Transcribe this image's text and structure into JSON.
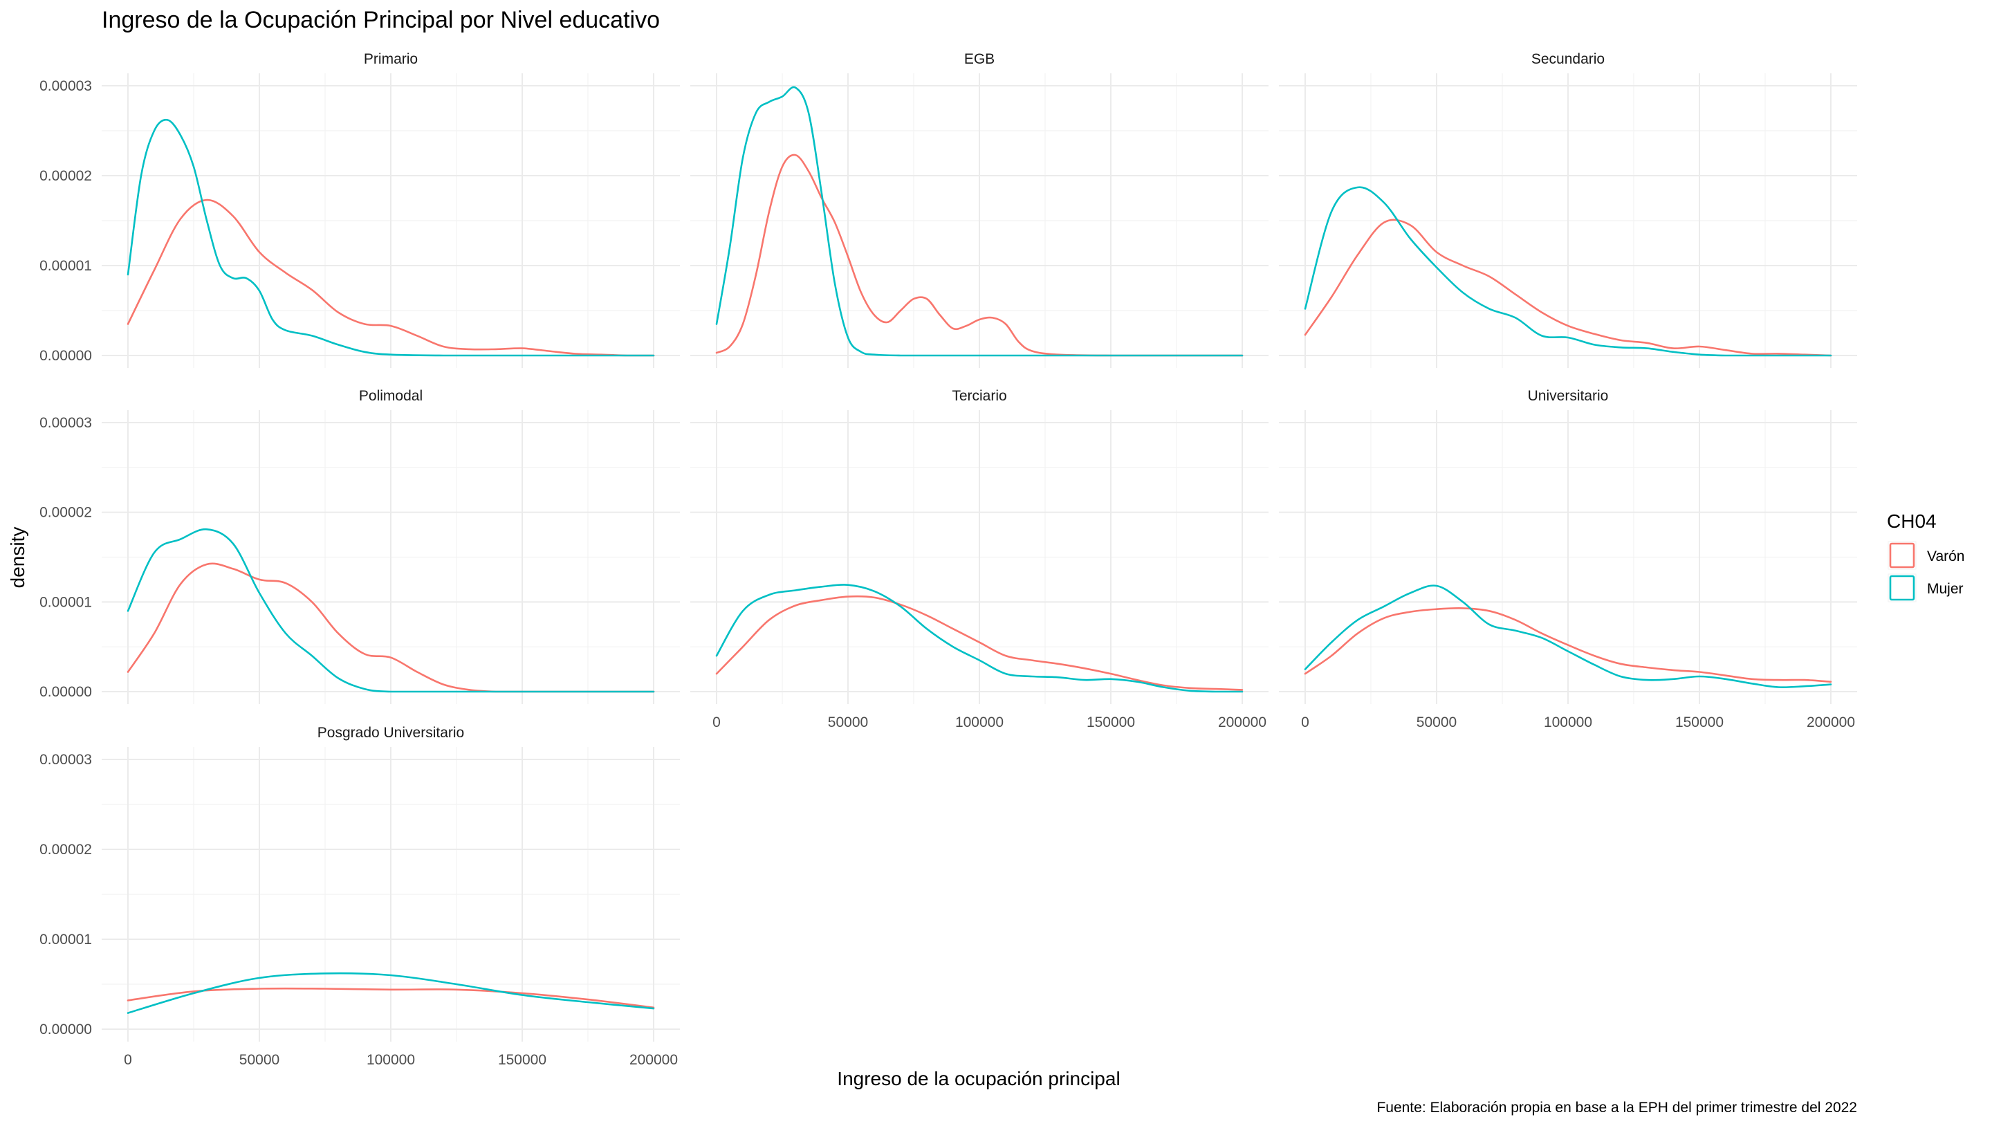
{
  "chart_data": {
    "type": "line",
    "title": "Ingreso de la Ocupación Principal por Nivel educativo",
    "xlabel": "Ingreso de la ocupación principal",
    "ylabel": "density",
    "caption": "Fuente: Elaboración propia en base a la EPH del primer trimestre del 2022",
    "xlim": [
      0,
      200000
    ],
    "ylim": [
      0,
      3e-05
    ],
    "x_ticks": [
      "0",
      "50000",
      "100000",
      "150000",
      "200000"
    ],
    "y_ticks": [
      "0.00000",
      "0.00001",
      "0.00002",
      "0.00003"
    ],
    "grid": true,
    "legend": {
      "title": "CH04",
      "position": "right",
      "entries": [
        {
          "label": "Varón",
          "color": "#F8766D"
        },
        {
          "label": "Mujer",
          "color": "#00BFC4"
        }
      ]
    },
    "panels": [
      {
        "name": "Primario",
        "series": [
          {
            "name": "Varón",
            "x": [
              0,
              10000,
              20000,
              30000,
              40000,
              50000,
              60000,
              70000,
              80000,
              90000,
              100000,
              110000,
              120000,
              130000,
              140000,
              150000,
              160000,
              170000,
              180000,
              190000,
              200000
            ],
            "y": [
              3.5e-06,
              9.5e-06,
              1.52e-05,
              1.73e-05,
              1.55e-05,
              1.15e-05,
              9.2e-06,
              7.3e-06,
              4.8e-06,
              3.5e-06,
              3.3e-06,
              2.2e-06,
              1e-06,
              7e-07,
              7e-07,
              8e-07,
              5e-07,
              2e-07,
              1e-07,
              0.0,
              0.0
            ]
          },
          {
            "name": "Mujer",
            "x": [
              0,
              5000,
              10000,
              15000,
              20000,
              25000,
              30000,
              35000,
              40000,
              45000,
              50000,
              55000,
              60000,
              70000,
              80000,
              90000,
              100000,
              120000,
              150000,
              200000
            ],
            "y": [
              9e-06,
              2e-05,
              2.5e-05,
              2.62e-05,
              2.45e-05,
              2.1e-05,
              1.5e-05,
              1e-05,
              8.6e-06,
              8.6e-06,
              7.2e-06,
              4e-06,
              2.8e-06,
              2.2e-06,
              1.2e-06,
              4e-07,
              1e-07,
              0.0,
              0.0,
              0.0
            ]
          }
        ]
      },
      {
        "name": "EGB",
        "series": [
          {
            "name": "Varón",
            "x": [
              0,
              5000,
              10000,
              15000,
              20000,
              25000,
              30000,
              35000,
              40000,
              45000,
              50000,
              55000,
              60000,
              65000,
              70000,
              75000,
              80000,
              85000,
              90000,
              95000,
              100000,
              105000,
              110000,
              115000,
              120000,
              130000,
              150000,
              200000
            ],
            "y": [
              3e-07,
              1e-06,
              3.5e-06,
              9e-06,
              1.6e-05,
              2.1e-05,
              2.23e-05,
              2.05e-05,
              1.75e-05,
              1.48e-05,
              1.1e-05,
              7e-06,
              4.5e-06,
              3.7e-06,
              5e-06,
              6.3e-06,
              6.3e-06,
              4.5e-06,
              3e-06,
              3.3e-06,
              4e-06,
              4.2e-06,
              3.5e-06,
              1.5e-06,
              5e-07,
              1e-07,
              0.0,
              0.0
            ]
          },
          {
            "name": "Mujer",
            "x": [
              0,
              5000,
              10000,
              15000,
              20000,
              25000,
              30000,
              35000,
              40000,
              45000,
              50000,
              55000,
              60000,
              70000,
              80000,
              100000,
              150000,
              200000
            ],
            "y": [
              3.5e-06,
              1.2e-05,
              2.2e-05,
              2.7e-05,
              2.82e-05,
              2.88e-05,
              2.98e-05,
              2.7e-05,
              1.8e-05,
              8e-06,
              2e-06,
              4e-07,
              1e-07,
              0.0,
              0.0,
              0.0,
              0.0,
              0.0
            ]
          }
        ]
      },
      {
        "name": "Secundario",
        "series": [
          {
            "name": "Varón",
            "x": [
              0,
              10000,
              20000,
              30000,
              40000,
              50000,
              60000,
              70000,
              80000,
              90000,
              100000,
              110000,
              120000,
              130000,
              140000,
              150000,
              160000,
              170000,
              180000,
              190000,
              200000
            ],
            "y": [
              2.3e-06,
              6.5e-06,
              1.12e-05,
              1.48e-05,
              1.45e-05,
              1.15e-05,
              1e-05,
              8.8e-06,
              6.8e-06,
              4.8e-06,
              3.3e-06,
              2.4e-06,
              1.7e-06,
              1.4e-06,
              8e-07,
              1e-06,
              6e-07,
              2e-07,
              2e-07,
              1e-07,
              0.0
            ]
          },
          {
            "name": "Mujer",
            "x": [
              0,
              10000,
              20000,
              30000,
              40000,
              50000,
              60000,
              70000,
              80000,
              90000,
              100000,
              110000,
              120000,
              130000,
              140000,
              150000,
              160000,
              170000,
              180000,
              190000,
              200000
            ],
            "y": [
              5.2e-06,
              1.6e-05,
              1.87e-05,
              1.7e-05,
              1.3e-05,
              9.8e-06,
              7e-06,
              5.2e-06,
              4.2e-06,
              2.2e-06,
              2e-06,
              1.2e-06,
              9e-07,
              8e-07,
              4e-07,
              1e-07,
              0.0,
              0.0,
              0.0,
              0.0,
              0.0
            ]
          }
        ]
      },
      {
        "name": "Polimodal",
        "series": [
          {
            "name": "Varón",
            "x": [
              0,
              10000,
              20000,
              30000,
              40000,
              50000,
              60000,
              70000,
              80000,
              90000,
              100000,
              110000,
              120000,
              130000,
              140000,
              150000,
              200000
            ],
            "y": [
              2.2e-06,
              6.5e-06,
              1.2e-05,
              1.42e-05,
              1.37e-05,
              1.25e-05,
              1.21e-05,
              1e-05,
              6.5e-06,
              4.2e-06,
              3.8e-06,
              2.2e-06,
              8e-07,
              2e-07,
              0.0,
              0.0,
              0.0
            ]
          },
          {
            "name": "Mujer",
            "x": [
              0,
              10000,
              20000,
              30000,
              40000,
              50000,
              60000,
              70000,
              80000,
              90000,
              100000,
              120000,
              150000,
              200000
            ],
            "y": [
              9e-06,
              1.55e-05,
              1.7e-05,
              1.81e-05,
              1.65e-05,
              1.1e-05,
              6.5e-06,
              4e-06,
              1.5e-06,
              3e-07,
              0.0,
              0.0,
              0.0,
              0.0
            ]
          }
        ]
      },
      {
        "name": "Terciario",
        "series": [
          {
            "name": "Varón",
            "x": [
              0,
              10000,
              20000,
              30000,
              40000,
              50000,
              60000,
              70000,
              80000,
              90000,
              100000,
              110000,
              120000,
              130000,
              140000,
              150000,
              160000,
              170000,
              180000,
              190000,
              200000
            ],
            "y": [
              2e-06,
              5e-06,
              8e-06,
              9.6e-06,
              1.02e-05,
              1.06e-05,
              1.05e-05,
              9.7e-06,
              8.5e-06,
              7e-06,
              5.5e-06,
              4e-06,
              3.5e-06,
              3.1e-06,
              2.6e-06,
              2e-06,
              1.3e-06,
              7e-07,
              4e-07,
              3e-07,
              2e-07
            ]
          },
          {
            "name": "Mujer",
            "x": [
              0,
              10000,
              20000,
              30000,
              40000,
              50000,
              60000,
              70000,
              80000,
              90000,
              100000,
              110000,
              120000,
              130000,
              140000,
              150000,
              160000,
              170000,
              180000,
              190000,
              200000
            ],
            "y": [
              4e-06,
              9e-06,
              1.08e-05,
              1.13e-05,
              1.17e-05,
              1.19e-05,
              1.12e-05,
              9.5e-06,
              7e-06,
              5e-06,
              3.5e-06,
              2e-06,
              1.7e-06,
              1.6e-06,
              1.3e-06,
              1.4e-06,
              1.1e-06,
              5e-07,
              1e-07,
              0.0,
              0.0
            ]
          }
        ]
      },
      {
        "name": "Universitario",
        "series": [
          {
            "name": "Varón",
            "x": [
              0,
              10000,
              20000,
              30000,
              40000,
              50000,
              60000,
              70000,
              80000,
              90000,
              100000,
              110000,
              120000,
              130000,
              140000,
              150000,
              160000,
              170000,
              180000,
              190000,
              200000
            ],
            "y": [
              2e-06,
              4e-06,
              6.5e-06,
              8.2e-06,
              8.9e-06,
              9.2e-06,
              9.3e-06,
              9e-06,
              8e-06,
              6.5e-06,
              5.2e-06,
              4e-06,
              3.1e-06,
              2.7e-06,
              2.4e-06,
              2.2e-06,
              1.8e-06,
              1.4e-06,
              1.3e-06,
              1.3e-06,
              1.1e-06
            ]
          },
          {
            "name": "Mujer",
            "x": [
              0,
              10000,
              20000,
              30000,
              40000,
              50000,
              60000,
              70000,
              80000,
              90000,
              100000,
              110000,
              120000,
              130000,
              140000,
              150000,
              160000,
              170000,
              180000,
              190000,
              200000
            ],
            "y": [
              2.5e-06,
              5.5e-06,
              8e-06,
              9.5e-06,
              1.1e-05,
              1.18e-05,
              1e-05,
              7.5e-06,
              6.8e-06,
              6e-06,
              4.5e-06,
              3e-06,
              1.7e-06,
              1.3e-06,
              1.4e-06,
              1.7e-06,
              1.4e-06,
              9e-07,
              5e-07,
              6e-07,
              8e-07
            ]
          }
        ]
      },
      {
        "name": "Posgrado Universitario",
        "series": [
          {
            "name": "Varón",
            "x": [
              0,
              25000,
              50000,
              75000,
              100000,
              125000,
              150000,
              175000,
              200000
            ],
            "y": [
              3.2e-06,
              4.2e-06,
              4.5e-06,
              4.5e-06,
              4.4e-06,
              4.4e-06,
              4e-06,
              3.3e-06,
              2.4e-06
            ]
          },
          {
            "name": "Mujer",
            "x": [
              0,
              25000,
              50000,
              75000,
              100000,
              125000,
              150000,
              175000,
              200000
            ],
            "y": [
              1.8e-06,
              4e-06,
              5.7e-06,
              6.2e-06,
              6e-06,
              5e-06,
              3.8e-06,
              3e-06,
              2.3e-06
            ]
          }
        ]
      }
    ]
  }
}
